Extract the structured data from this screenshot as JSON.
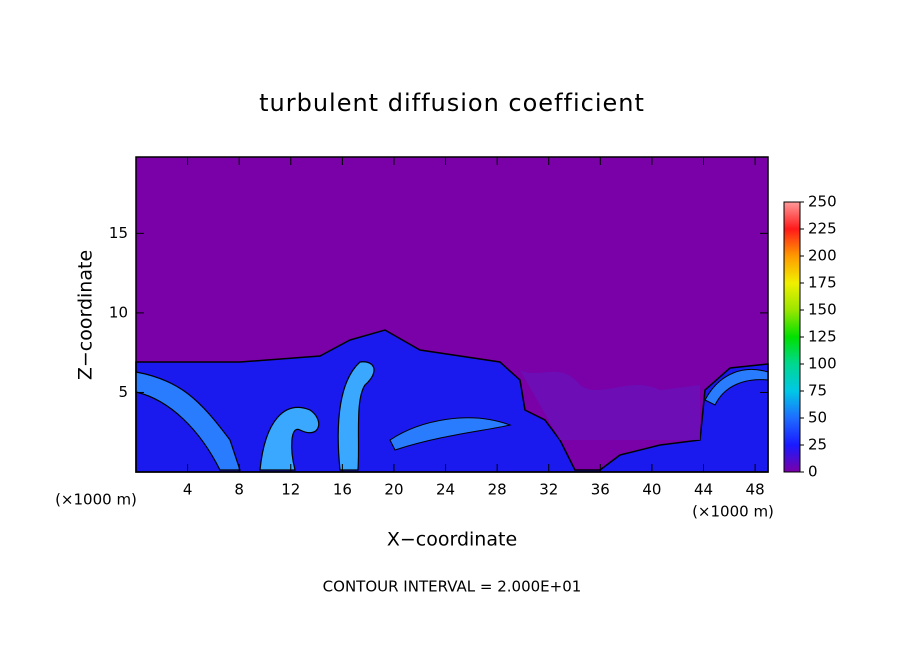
{
  "chart_data": {
    "type": "contour",
    "title": "turbulent diffusion coefficient",
    "xlabel": "X−coordinate",
    "ylabel": "Z−coordinate",
    "x_unit_left": "(×1000 m)",
    "x_unit_right": "(×1000 m)",
    "annotation": "CONTOUR INTERVAL = 2.000E+01",
    "xlim": [
      0,
      49
    ],
    "ylim": [
      0,
      19.8
    ],
    "xticks": [
      4,
      8,
      12,
      16,
      20,
      24,
      28,
      32,
      36,
      40,
      44,
      48
    ],
    "yticks": [
      5,
      10,
      15
    ],
    "colorbar": {
      "lim": [
        0,
        250
      ],
      "ticks": [
        0,
        25,
        50,
        75,
        100,
        125,
        150,
        175,
        200,
        225,
        250
      ],
      "colors": [
        "#7a00a8",
        "#1a1aff",
        "#1e6cff",
        "#00c8e6",
        "#00d890",
        "#00e000",
        "#9ae600",
        "#f0f000",
        "#ff9a00",
        "#ff1a1a",
        "#ff9a9a"
      ]
    }
  }
}
